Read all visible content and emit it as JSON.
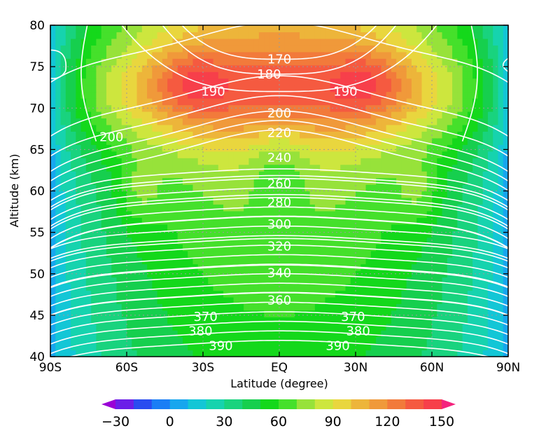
{
  "chart_data": {
    "type": "heatmap",
    "title": "",
    "xlabel": "Latitude (degree)",
    "ylabel": "Altitude (km)",
    "xlim": [
      -90,
      90
    ],
    "ylim": [
      40,
      80
    ],
    "x_ticks": [
      {
        "value": -90,
        "label": "90S"
      },
      {
        "value": -60,
        "label": "60S"
      },
      {
        "value": -30,
        "label": "30S"
      },
      {
        "value": 0,
        "label": "EQ"
      },
      {
        "value": 30,
        "label": "30N"
      },
      {
        "value": 60,
        "label": "60N"
      },
      {
        "value": 90,
        "label": "90N"
      }
    ],
    "y_ticks": [
      {
        "value": 40,
        "label": "40"
      },
      {
        "value": 45,
        "label": "45"
      },
      {
        "value": 50,
        "label": "50"
      },
      {
        "value": 55,
        "label": "55"
      },
      {
        "value": 60,
        "label": "60"
      },
      {
        "value": 65,
        "label": "65"
      },
      {
        "value": 70,
        "label": "70"
      },
      {
        "value": 75,
        "label": "75"
      },
      {
        "value": 80,
        "label": "80"
      }
    ],
    "grid": "dotted",
    "shaded_field": {
      "levels": [
        -30,
        -20,
        -10,
        0,
        10,
        20,
        30,
        40,
        50,
        60,
        70,
        80,
        90,
        100,
        110,
        120,
        130,
        140,
        150
      ],
      "colors": [
        "#9a00d6",
        "#6b1ee8",
        "#2a4cf0",
        "#1a7ef5",
        "#17a6ee",
        "#13c6d6",
        "#16d3ae",
        "#19d37e",
        "#16cf4e",
        "#14d81b",
        "#45e02b",
        "#97e23a",
        "#cde63e",
        "#e9d63e",
        "#edb53a",
        "#f0993a",
        "#f27a3b",
        "#f55a40",
        "#f73f4a",
        "#f4237d"
      ],
      "colorbar_labels": [
        {
          "value": -30,
          "label": "−30"
        },
        {
          "value": 0,
          "label": "0"
        },
        {
          "value": 30,
          "label": "30"
        },
        {
          "value": 60,
          "label": "60"
        },
        {
          "value": 90,
          "label": "90"
        },
        {
          "value": 120,
          "label": "120"
        },
        {
          "value": 150,
          "label": "150"
        }
      ]
    },
    "contour_labels": [
      {
        "text": "170",
        "lat": 0,
        "alt": 75.9
      },
      {
        "text": "180",
        "lat": -4,
        "alt": 74.1
      },
      {
        "text": "190",
        "lat": -26,
        "alt": 72.0
      },
      {
        "text": "190",
        "lat": 26,
        "alt": 72.0
      },
      {
        "text": "200",
        "lat": 0,
        "alt": 69.4
      },
      {
        "text": "200",
        "lat": -66,
        "alt": 66.5
      },
      {
        "text": "220",
        "lat": 0,
        "alt": 67.0
      },
      {
        "text": "240",
        "lat": 0,
        "alt": 64.0
      },
      {
        "text": "260",
        "lat": 0,
        "alt": 60.9
      },
      {
        "text": "280",
        "lat": 0,
        "alt": 58.6
      },
      {
        "text": "300",
        "lat": 0,
        "alt": 56.0
      },
      {
        "text": "320",
        "lat": 0,
        "alt": 53.3
      },
      {
        "text": "340",
        "lat": 0,
        "alt": 50.1
      },
      {
        "text": "360",
        "lat": 0,
        "alt": 46.8
      },
      {
        "text": "370",
        "lat": -29,
        "alt": 44.8
      },
      {
        "text": "370",
        "lat": 29,
        "alt": 44.8
      },
      {
        "text": "380",
        "lat": -31,
        "alt": 43.1
      },
      {
        "text": "380",
        "lat": 31,
        "alt": 43.1
      },
      {
        "text": "390",
        "lat": -23,
        "alt": 41.3
      },
      {
        "text": "390",
        "lat": 23,
        "alt": 41.3
      }
    ]
  }
}
